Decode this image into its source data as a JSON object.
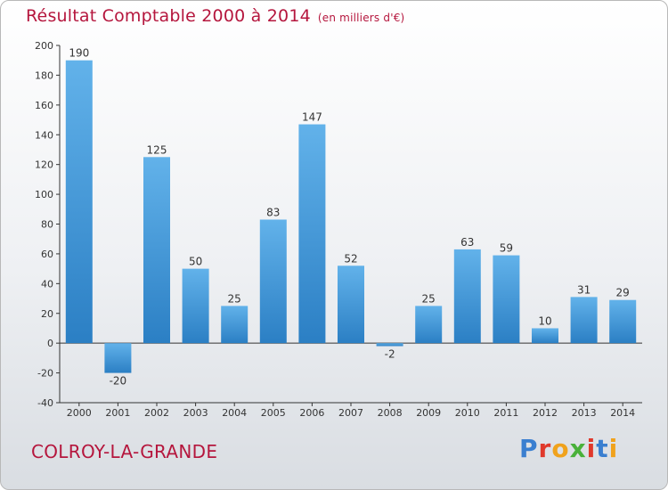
{
  "header": {
    "title": "Résultat Comptable 2000 à 2014",
    "unit": "(en milliers d'€)"
  },
  "footer": {
    "town": "COLROY-LA-GRANDE",
    "logo": "Proxiti"
  },
  "colors": {
    "title": "#b5163d",
    "bar_top": "#62b2ea",
    "bar_bottom": "#2b7fc4",
    "axis": "#333333"
  },
  "chart_data": {
    "type": "bar",
    "title": "Résultat Comptable 2000 à 2014",
    "ylabel": "en milliers d'€",
    "xlabel": "",
    "ylim": [
      -40,
      200
    ],
    "yticks": [
      -40,
      -20,
      0,
      20,
      40,
      60,
      80,
      100,
      120,
      140,
      160,
      180,
      200
    ],
    "grid": false,
    "categories": [
      "2000",
      "2001",
      "2002",
      "2003",
      "2004",
      "2005",
      "2006",
      "2007",
      "2008",
      "2009",
      "2010",
      "2011",
      "2012",
      "2013",
      "2014"
    ],
    "values": [
      190,
      -20,
      125,
      50,
      25,
      83,
      147,
      52,
      -2,
      25,
      63,
      59,
      10,
      31,
      29
    ]
  }
}
